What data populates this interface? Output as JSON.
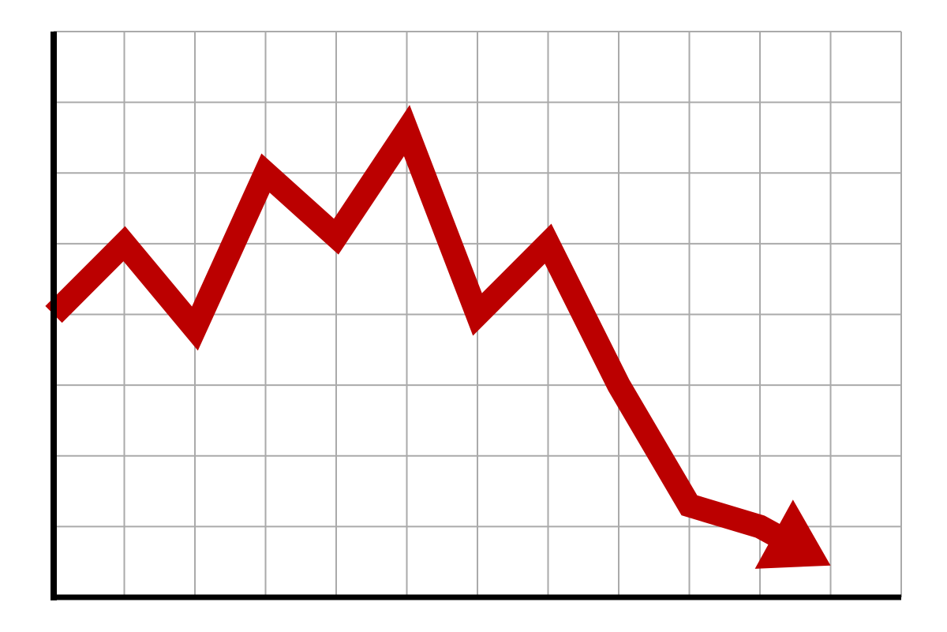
{
  "chart_data": {
    "type": "line",
    "x": [
      0,
      1,
      2,
      3,
      4,
      5,
      6,
      7,
      8,
      9,
      10,
      11
    ],
    "series": [
      {
        "values": [
          4.0,
          5.0,
          3.8,
          6.0,
          5.1,
          6.6,
          4.0,
          5.0,
          3.0,
          1.3,
          1.0,
          0.45
        ]
      }
    ],
    "xlim": [
      0,
      12
    ],
    "ylim": [
      0,
      8
    ],
    "grid": true,
    "line_style": "thick-arrow",
    "colors": {
      "line": "#bb0000",
      "grid": "#aaaaaa",
      "axis": "#000000",
      "background": "#ffffff"
    }
  }
}
